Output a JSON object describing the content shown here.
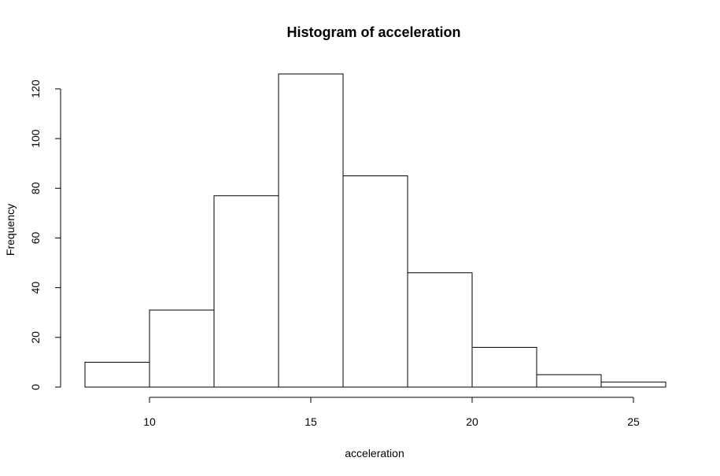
{
  "chart_data": {
    "type": "bar",
    "title": "Histogram of acceleration",
    "xlabel": "acceleration",
    "ylabel": "Frequency",
    "bins": [
      {
        "start": 8,
        "end": 10,
        "count": 10
      },
      {
        "start": 10,
        "end": 12,
        "count": 31
      },
      {
        "start": 12,
        "end": 14,
        "count": 77
      },
      {
        "start": 14,
        "end": 16,
        "count": 126
      },
      {
        "start": 16,
        "end": 18,
        "count": 85
      },
      {
        "start": 18,
        "end": 20,
        "count": 46
      },
      {
        "start": 20,
        "end": 22,
        "count": 16
      },
      {
        "start": 22,
        "end": 24,
        "count": 5
      },
      {
        "start": 24,
        "end": 26,
        "count": 2
      }
    ],
    "x_ticks": [
      10,
      15,
      20,
      25
    ],
    "y_ticks": [
      0,
      20,
      40,
      60,
      80,
      100,
      120
    ],
    "xlim": [
      8,
      26
    ],
    "ylim": [
      0,
      126
    ],
    "grid": false,
    "colors": {
      "bar_fill": "#ffffff",
      "bar_stroke": "#000000"
    }
  }
}
